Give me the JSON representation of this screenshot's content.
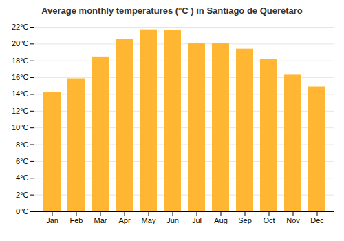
{
  "chart_data": {
    "type": "bar",
    "title": "Average monthly temperatures (°C ) in Santiago de Querétaro",
    "categories": [
      "Jan",
      "Feb",
      "Mar",
      "Apr",
      "May",
      "Jun",
      "Jul",
      "Aug",
      "Sep",
      "Oct",
      "Nov",
      "Dec"
    ],
    "values": [
      14.2,
      15.8,
      18.4,
      20.6,
      21.7,
      21.6,
      20.1,
      20.1,
      19.4,
      18.2,
      16.3,
      14.9
    ],
    "color": "#FFB733",
    "ylim": [
      0,
      22
    ],
    "yticks": [
      {
        "value": 0,
        "label": "0°C"
      },
      {
        "value": 2,
        "label": "2°C"
      },
      {
        "value": 4,
        "label": "4°C"
      },
      {
        "value": 6,
        "label": "6°C"
      },
      {
        "value": 8,
        "label": "8°C"
      },
      {
        "value": 10,
        "label": "10°C"
      },
      {
        "value": 12,
        "label": "12°C"
      },
      {
        "value": 14,
        "label": "14°C"
      },
      {
        "value": 16,
        "label": "16°C"
      },
      {
        "value": 18,
        "label": "18°C"
      },
      {
        "value": 20,
        "label": "20°C"
      },
      {
        "value": 22,
        "label": "22°C"
      }
    ],
    "grid": true
  }
}
